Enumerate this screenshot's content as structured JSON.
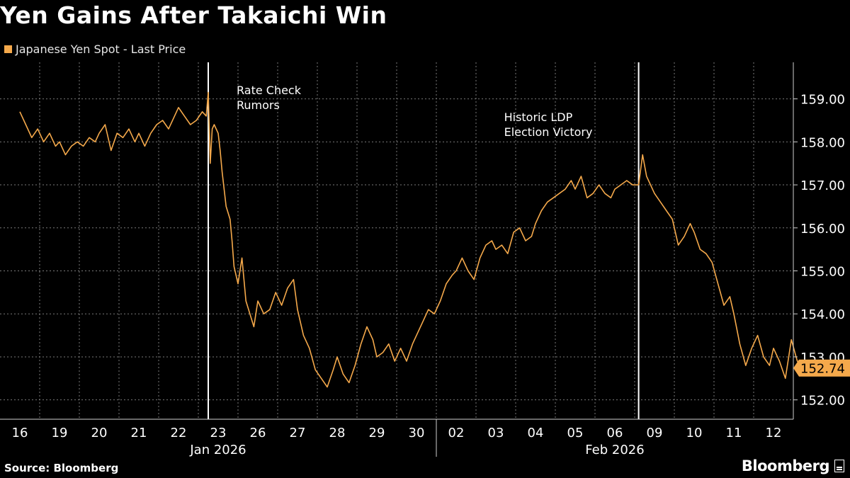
{
  "chart_data": {
    "type": "line",
    "title": "Yen Gains After Takaichi Win",
    "series_name": "Japanese Yen Spot - Last Price",
    "series_color": "#f5a94b",
    "last_value_label": "152.74",
    "y_ticks": [
      "152.00",
      "153.00",
      "154.00",
      "155.00",
      "156.00",
      "157.00",
      "158.00",
      "159.00"
    ],
    "ylim": [
      151.55,
      159.85
    ],
    "x_day_labels": [
      "16",
      "19",
      "20",
      "21",
      "22",
      "23",
      "26",
      "27",
      "28",
      "29",
      "30",
      "02",
      "03",
      "04",
      "05",
      "06",
      "09",
      "10",
      "11",
      "12"
    ],
    "x_month_labels": [
      "Jan 2026",
      "Feb 2026"
    ],
    "annotations": [
      {
        "text": [
          "Rate Check",
          "Rumors"
        ],
        "session_index": 4.75
      },
      {
        "text": [
          "Historic LDP",
          "Election Victory"
        ],
        "session_index": 15.6
      }
    ],
    "x_session_index": [
      0,
      0.15,
      0.3,
      0.45,
      0.6,
      0.75,
      0.9,
      1.0,
      1.15,
      1.3,
      1.45,
      1.6,
      1.75,
      1.9,
      2.0,
      2.15,
      2.3,
      2.45,
      2.6,
      2.75,
      2.9,
      3.0,
      3.15,
      3.3,
      3.45,
      3.6,
      3.75,
      3.9,
      4.0,
      4.15,
      4.3,
      4.45,
      4.6,
      4.7,
      4.75,
      4.8,
      4.85,
      4.9,
      5.0,
      5.05,
      5.1,
      5.2,
      5.3,
      5.35,
      5.4,
      5.5,
      5.6,
      5.7,
      5.8,
      5.9,
      6.0,
      6.15,
      6.3,
      6.45,
      6.6,
      6.75,
      6.9,
      7.0,
      7.15,
      7.3,
      7.45,
      7.6,
      7.75,
      7.9,
      8.0,
      8.15,
      8.3,
      8.45,
      8.6,
      8.75,
      8.9,
      9.0,
      9.15,
      9.3,
      9.45,
      9.6,
      9.75,
      9.9,
      10.0,
      10.15,
      10.3,
      10.45,
      10.6,
      10.75,
      10.9,
      11.0,
      11.15,
      11.3,
      11.45,
      11.6,
      11.75,
      11.9,
      12.0,
      12.15,
      12.3,
      12.45,
      12.6,
      12.75,
      12.9,
      13.0,
      13.15,
      13.3,
      13.45,
      13.6,
      13.75,
      13.9,
      14.0,
      14.15,
      14.3,
      14.45,
      14.6,
      14.75,
      14.9,
      15.0,
      15.15,
      15.3,
      15.45,
      15.6,
      15.7,
      15.8,
      15.9,
      16.0,
      16.15,
      16.3,
      16.45,
      16.6,
      16.75,
      16.9,
      17.0,
      17.15,
      17.3,
      17.45,
      17.6,
      17.75,
      17.9,
      18.0,
      18.15,
      18.3,
      18.45,
      18.6,
      18.75,
      18.9,
      19.0,
      19.15,
      19.3,
      19.45,
      19.6,
      19.75
    ],
    "y_values": [
      158.7,
      158.4,
      158.1,
      158.3,
      158.0,
      158.2,
      157.9,
      158.0,
      157.7,
      157.9,
      158.0,
      157.9,
      158.1,
      158.0,
      158.2,
      158.4,
      157.8,
      158.2,
      158.1,
      158.3,
      158.0,
      158.2,
      157.9,
      158.2,
      158.4,
      158.5,
      158.3,
      158.6,
      158.8,
      158.6,
      158.4,
      158.5,
      158.7,
      158.6,
      159.15,
      157.5,
      158.3,
      158.4,
      158.2,
      157.8,
      157.3,
      156.5,
      156.2,
      155.7,
      155.1,
      154.7,
      155.3,
      154.3,
      154.0,
      153.7,
      154.3,
      154.0,
      154.1,
      154.5,
      154.2,
      154.6,
      154.8,
      154.1,
      153.5,
      153.2,
      152.7,
      152.5,
      152.3,
      152.7,
      153.0,
      152.6,
      152.4,
      152.8,
      153.3,
      153.7,
      153.4,
      153.0,
      153.1,
      153.3,
      152.9,
      153.2,
      152.9,
      153.3,
      153.5,
      153.8,
      154.1,
      154.0,
      154.3,
      154.7,
      154.9,
      155.0,
      155.3,
      155.0,
      154.8,
      155.3,
      155.6,
      155.7,
      155.5,
      155.6,
      155.4,
      155.9,
      156.0,
      155.7,
      155.8,
      156.1,
      156.4,
      156.6,
      156.7,
      156.8,
      156.9,
      157.1,
      156.9,
      157.2,
      156.7,
      156.8,
      157.0,
      156.8,
      156.7,
      156.9,
      157.0,
      157.1,
      157.0,
      157.0,
      157.7,
      157.2,
      157.0,
      156.8,
      156.6,
      156.4,
      156.2,
      155.6,
      155.8,
      156.1,
      155.9,
      155.5,
      155.4,
      155.2,
      154.7,
      154.2,
      154.4,
      154.0,
      153.3,
      152.8,
      153.2,
      153.5,
      153.0,
      152.8,
      153.2,
      152.9,
      152.5,
      153.4,
      152.9,
      152.74
    ]
  }
}
